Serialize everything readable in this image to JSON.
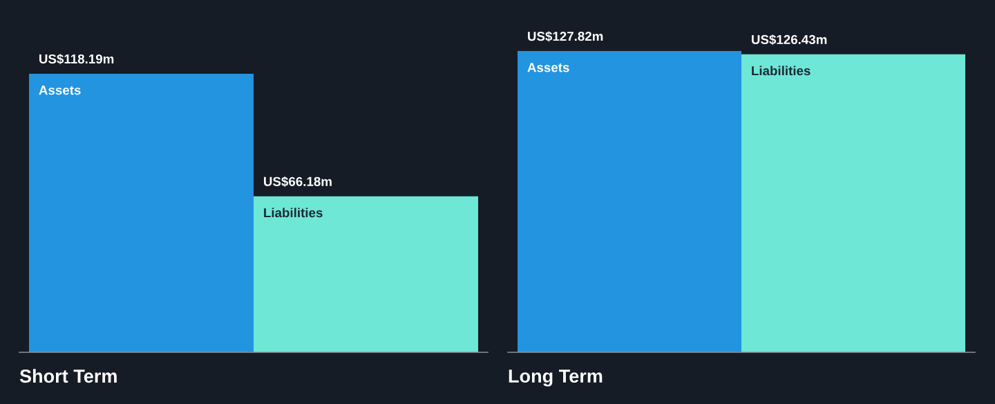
{
  "chart_data": [
    {
      "type": "bar",
      "xlabel": "Short Term",
      "categories": [
        null
      ],
      "series": [
        {
          "name": "Assets",
          "color": "#2394df",
          "values": [
            118190000
          ],
          "value_labels": [
            "US$118.19m"
          ]
        },
        {
          "name": "Liabilities",
          "color": "#6ee7d6",
          "values": [
            66180000
          ],
          "value_labels": [
            "US$66.18m"
          ]
        }
      ]
    },
    {
      "type": "bar",
      "xlabel": "Long Term",
      "categories": [
        null
      ],
      "series": [
        {
          "name": "Assets",
          "color": "#2394df",
          "values": [
            127820000
          ],
          "value_labels": [
            "US$127.82m"
          ]
        },
        {
          "name": "Liabilities",
          "color": "#6ee7d6",
          "values": [
            126430000
          ],
          "value_labels": [
            "US$126.43m"
          ]
        }
      ]
    }
  ]
}
